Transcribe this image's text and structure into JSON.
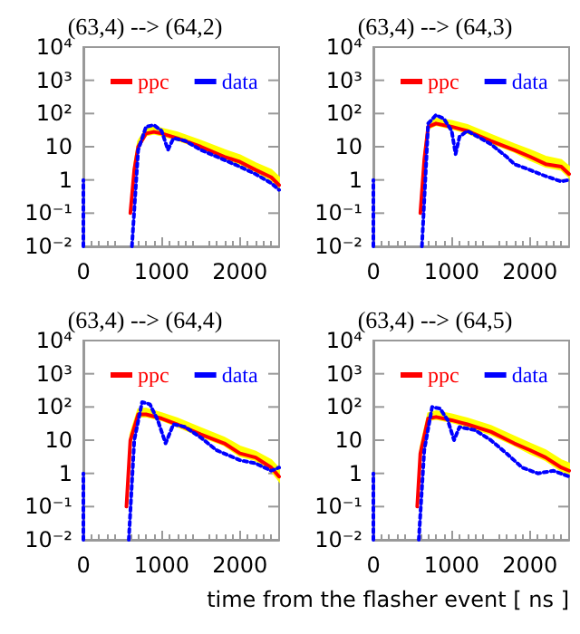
{
  "chart_data": [
    {
      "type": "line",
      "title": "(63,4) --> (64,2)",
      "xlim": [
        0,
        2500
      ],
      "xticks": [
        0,
        1000,
        2000
      ],
      "ylim": [
        0.01,
        10000
      ],
      "log": "y",
      "yticks": [
        {
          "value": 0.01,
          "label": "10⁻²"
        },
        {
          "value": 0.1,
          "label": "10⁻¹"
        },
        {
          "value": 1,
          "label": "1"
        },
        {
          "value": 10,
          "label": "10"
        },
        {
          "value": 100,
          "label": "10²"
        },
        {
          "value": 1000,
          "label": "10³"
        },
        {
          "value": 10000,
          "label": "10⁴"
        }
      ],
      "grid": false,
      "legend": "top",
      "marker": "none",
      "series": [
        {
          "name": "ppc",
          "color": "#ff0000",
          "line_style": "solid",
          "x": [
            600,
            650,
            700,
            800,
            900,
            1000,
            1200,
            1500,
            1800,
            2000,
            2200,
            2400,
            2500
          ],
          "values": [
            0.1,
            2,
            10,
            25,
            28,
            25,
            18,
            10,
            5,
            3.5,
            2,
            1.2,
            0.7
          ],
          "lower": [
            0.1,
            2,
            9,
            22,
            25,
            22,
            16,
            9,
            4.5,
            3,
            1.8,
            1,
            0.5
          ],
          "upper": [
            0.1,
            3,
            15,
            35,
            40,
            35,
            27,
            15,
            8,
            5.5,
            3.2,
            2,
            1.2
          ]
        },
        {
          "name": "data",
          "color": "#0000ff",
          "line_style": "dotted",
          "x": [
            0,
            0,
            20,
            620,
            700,
            800,
            900,
            1000,
            1080,
            1150,
            1300,
            1500,
            1800,
            2000,
            2200,
            2400,
            2500
          ],
          "values": [
            0.01,
            1,
            null,
            0.01,
            8,
            40,
            45,
            30,
            8,
            18,
            15,
            8,
            4,
            2.5,
            1.5,
            0.8,
            0.5
          ]
        }
      ]
    },
    {
      "type": "line",
      "title": "(63,4) --> (64,3)",
      "xlim": [
        0,
        2500
      ],
      "xticks": [
        0,
        1000,
        2000
      ],
      "ylim": [
        0.01,
        10000
      ],
      "log": "y",
      "yticks": [
        {
          "value": 0.01,
          "label": "10⁻²"
        },
        {
          "value": 0.1,
          "label": "10⁻¹"
        },
        {
          "value": 1,
          "label": "1"
        },
        {
          "value": 10,
          "label": "10"
        },
        {
          "value": 100,
          "label": "10²"
        },
        {
          "value": 1000,
          "label": "10³"
        },
        {
          "value": 10000,
          "label": "10⁴"
        }
      ],
      "grid": false,
      "legend": "top",
      "marker": "none",
      "series": [
        {
          "name": "ppc",
          "color": "#ff0000",
          "line_style": "solid",
          "x": [
            600,
            650,
            700,
            800,
            1000,
            1200,
            1500,
            1800,
            2000,
            2200,
            2400,
            2500
          ],
          "values": [
            0.1,
            4,
            40,
            50,
            40,
            30,
            15,
            8,
            5,
            3,
            2.5,
            1.5
          ],
          "lower": [
            0.1,
            3,
            35,
            45,
            35,
            26,
            13,
            7,
            4,
            2.5,
            2,
            1.2
          ],
          "upper": [
            0.1,
            6,
            55,
            70,
            60,
            45,
            23,
            12,
            8,
            5,
            4,
            2.5
          ]
        },
        {
          "name": "data",
          "color": "#0000ff",
          "line_style": "dotted",
          "x": [
            0,
            0,
            20,
            620,
            700,
            800,
            900,
            1000,
            1050,
            1100,
            1200,
            1500,
            1700,
            1800,
            2000,
            2200,
            2400,
            2500
          ],
          "values": [
            0.01,
            1,
            null,
            0.01,
            50,
            90,
            70,
            30,
            6,
            20,
            30,
            12,
            5,
            3,
            2,
            1.3,
            0.9,
            1
          ]
        }
      ]
    },
    {
      "type": "line",
      "title": "(63,4) --> (64,4)",
      "xlim": [
        0,
        2500
      ],
      "xticks": [
        0,
        1000,
        2000
      ],
      "ylim": [
        0.01,
        10000
      ],
      "log": "y",
      "yticks": [
        {
          "value": 0.01,
          "label": "10⁻²"
        },
        {
          "value": 0.1,
          "label": "10⁻¹"
        },
        {
          "value": 1,
          "label": "1"
        },
        {
          "value": 10,
          "label": "10"
        },
        {
          "value": 100,
          "label": "10²"
        },
        {
          "value": 1000,
          "label": "10³"
        },
        {
          "value": 10000,
          "label": "10⁴"
        }
      ],
      "grid": false,
      "legend": "top",
      "marker": "none",
      "series": [
        {
          "name": "ppc",
          "color": "#ff0000",
          "line_style": "solid",
          "x": [
            550,
            600,
            700,
            800,
            1000,
            1200,
            1500,
            1800,
            2000,
            2200,
            2400,
            2500
          ],
          "values": [
            0.1,
            10,
            60,
            60,
            45,
            30,
            15,
            8,
            4,
            3,
            1.5,
            0.8
          ],
          "lower": [
            0.1,
            8,
            50,
            52,
            40,
            26,
            13,
            7,
            3.3,
            2.5,
            1.2,
            0.6
          ],
          "upper": [
            0.1,
            15,
            85,
            90,
            65,
            45,
            23,
            12,
            6.5,
            4.5,
            2.5,
            1.4
          ]
        },
        {
          "name": "data",
          "color": "#0000ff",
          "line_style": "dotted",
          "x": [
            0,
            0,
            20,
            580,
            650,
            750,
            850,
            950,
            1050,
            1150,
            1300,
            1500,
            1700,
            2000,
            2200,
            2400,
            2500
          ],
          "values": [
            0.01,
            1,
            null,
            0.01,
            10,
            140,
            120,
            40,
            8,
            30,
            25,
            12,
            5,
            2.5,
            2,
            1.2,
            1.5
          ]
        }
      ]
    },
    {
      "type": "line",
      "title": "(63,4) --> (64,5)",
      "xlabel": "time from the flasher event [ ns ]",
      "xlim": [
        0,
        2500
      ],
      "xticks": [
        0,
        1000,
        2000
      ],
      "ylim": [
        0.01,
        10000
      ],
      "log": "y",
      "yticks": [
        {
          "value": 0.01,
          "label": "10⁻²"
        },
        {
          "value": 0.1,
          "label": "10⁻¹"
        },
        {
          "value": 1,
          "label": "1"
        },
        {
          "value": 10,
          "label": "10"
        },
        {
          "value": 100,
          "label": "10²"
        },
        {
          "value": 1000,
          "label": "10³"
        },
        {
          "value": 10000,
          "label": "10⁴"
        }
      ],
      "grid": false,
      "legend": "top",
      "marker": "none",
      "series": [
        {
          "name": "ppc",
          "color": "#ff0000",
          "line_style": "solid",
          "x": [
            560,
            600,
            700,
            800,
            1000,
            1200,
            1500,
            1800,
            2000,
            2200,
            2400,
            2500
          ],
          "values": [
            0.1,
            4,
            45,
            50,
            40,
            30,
            18,
            8,
            5,
            3,
            1.5,
            1.2
          ],
          "lower": [
            0.1,
            3,
            40,
            44,
            35,
            26,
            15,
            7,
            4,
            2.5,
            1.2,
            1
          ],
          "upper": [
            0.1,
            6,
            65,
            75,
            60,
            45,
            27,
            13,
            8,
            5,
            2.5,
            2
          ]
        },
        {
          "name": "data",
          "color": "#0000ff",
          "line_style": "dotted",
          "x": [
            0,
            0,
            20,
            580,
            650,
            750,
            850,
            950,
            1030,
            1100,
            1300,
            1500,
            1700,
            1900,
            2100,
            2300,
            2500
          ],
          "values": [
            0.01,
            1,
            null,
            0.01,
            5,
            100,
            90,
            40,
            10,
            25,
            20,
            10,
            4,
            1.5,
            1,
            1.2,
            0.8
          ]
        }
      ]
    }
  ]
}
